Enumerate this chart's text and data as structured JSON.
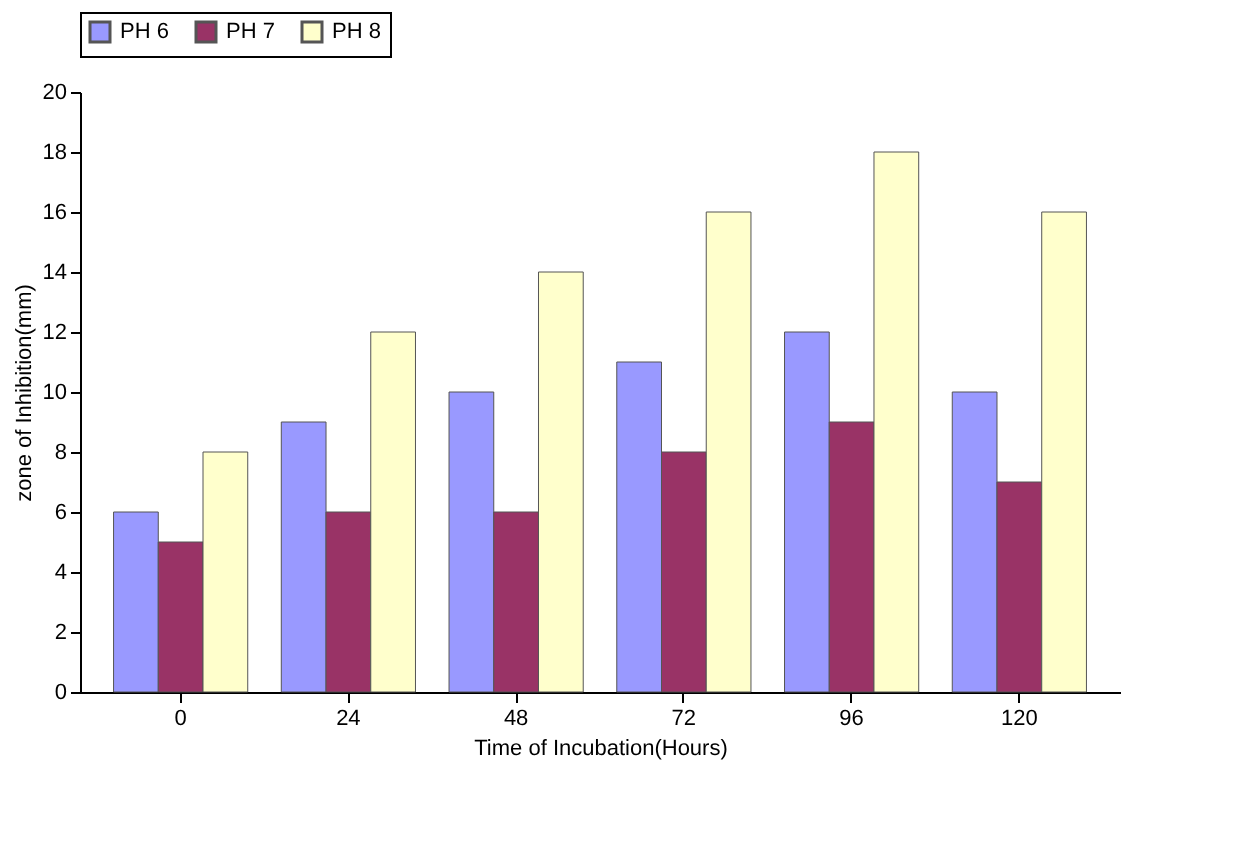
{
  "chart_data": {
    "type": "bar",
    "xlabel": "Time of Incubation(Hours)",
    "ylabel": "zone of Inhibition(mm)",
    "categories": [
      "0",
      "24",
      "48",
      "72",
      "96",
      "120"
    ],
    "series": [
      {
        "name": "PH 6",
        "color": "#9999ff",
        "values": [
          6,
          9,
          10,
          11,
          12,
          10
        ]
      },
      {
        "name": "PH 7",
        "color": "#993366",
        "values": [
          5,
          6,
          6,
          8,
          9,
          7
        ]
      },
      {
        "name": "PH 8",
        "color": "#ffffcc",
        "values": [
          8,
          12,
          14,
          16,
          18,
          16
        ]
      }
    ],
    "ylim": [
      0,
      20
    ],
    "yticks": [
      0,
      2,
      4,
      6,
      8,
      10,
      12,
      14,
      16,
      18,
      20
    ],
    "grid": false,
    "legend": "top"
  }
}
